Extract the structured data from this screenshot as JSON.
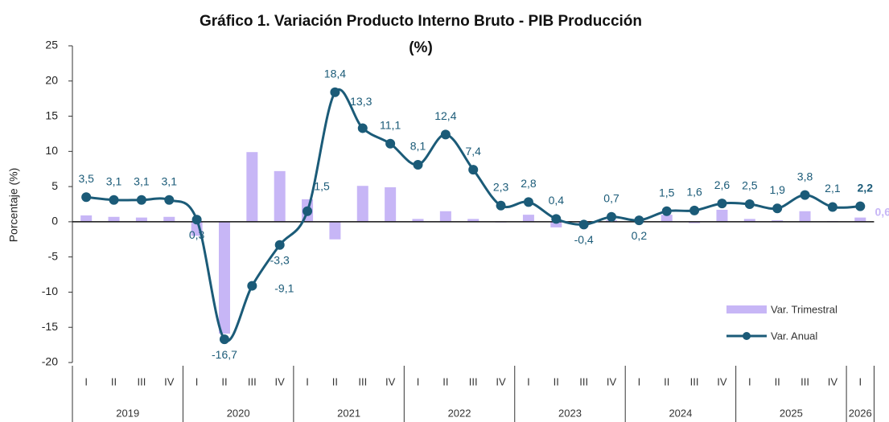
{
  "chart_data": {
    "type": "bar_line",
    "title": [
      "Gráfico 1. Variación Producto Interno Bruto - PIB Producción",
      "(%)"
    ],
    "y_axis_label": "Porcentaje (%)",
    "categories": [
      "I",
      "II",
      "III",
      "IV",
      "I",
      "II",
      "III",
      "IV",
      "I",
      "II",
      "III",
      "IV",
      "I",
      "II",
      "III",
      "IV",
      "I",
      "II",
      "III",
      "IV",
      "I",
      "II",
      "III",
      "IV",
      "I",
      "II",
      "III",
      "IV",
      "I"
    ],
    "category_years": [
      "2019",
      "2019",
      "2019",
      "2019",
      "2020",
      "2020",
      "2020",
      "2020",
      "2021",
      "2021",
      "2021",
      "2021",
      "2022",
      "2022",
      "2022",
      "2022",
      "2023",
      "2023",
      "2023",
      "2023",
      "2024",
      "2024",
      "2024",
      "2024",
      "2025",
      "2025",
      "2025",
      "2025",
      "2026"
    ],
    "series": [
      {
        "name": "Var. Trimestral",
        "kind": "bar",
        "color": "#c7b6f6",
        "values": [
          0.9,
          0.7,
          0.6,
          0.7,
          -2.0,
          -15.9,
          9.9,
          7.2,
          3.2,
          -2.5,
          5.1,
          4.9,
          0.4,
          1.5,
          0.4,
          -0.1,
          1.0,
          -0.8,
          -0.2,
          0.2,
          0.1,
          1.0,
          -0.2,
          1.7,
          0.4,
          0.2,
          1.5,
          0.1,
          0.6
        ],
        "value_labels": [
          null,
          null,
          null,
          null,
          null,
          null,
          null,
          null,
          null,
          null,
          null,
          null,
          null,
          null,
          null,
          null,
          null,
          null,
          null,
          null,
          null,
          null,
          null,
          null,
          null,
          null,
          null,
          null,
          "0,6"
        ]
      },
      {
        "name": "Var. Anual",
        "kind": "line",
        "color": "#1b5b78",
        "values": [
          3.5,
          3.1,
          3.1,
          3.1,
          0.3,
          -16.7,
          -9.1,
          -3.3,
          1.5,
          18.4,
          13.3,
          11.1,
          8.1,
          12.4,
          7.4,
          2.3,
          2.8,
          0.4,
          -0.4,
          0.7,
          0.2,
          1.5,
          1.6,
          2.6,
          2.5,
          1.9,
          3.8,
          2.1,
          2.2
        ],
        "value_labels": [
          "3,5",
          "3,1",
          "3,1",
          "3,1",
          "0,3",
          "-16,7",
          "-9,1",
          "-3,3",
          "1,5",
          "18,4",
          "13,3",
          "11,1",
          "8,1",
          "12,4",
          "7,4",
          "2,3",
          "2,8",
          "0,4",
          "-0,4",
          "0,7",
          "0,2",
          "1,5",
          "1,6",
          "2,6",
          "2,5",
          "1,9",
          "3,8",
          "2,1",
          "2,2"
        ]
      }
    ],
    "ylim": [
      -20,
      25
    ],
    "yticks": [
      25,
      20,
      15,
      10,
      5,
      0,
      -5,
      -10,
      -15,
      -20
    ],
    "grid": false,
    "legend": "lower right"
  }
}
